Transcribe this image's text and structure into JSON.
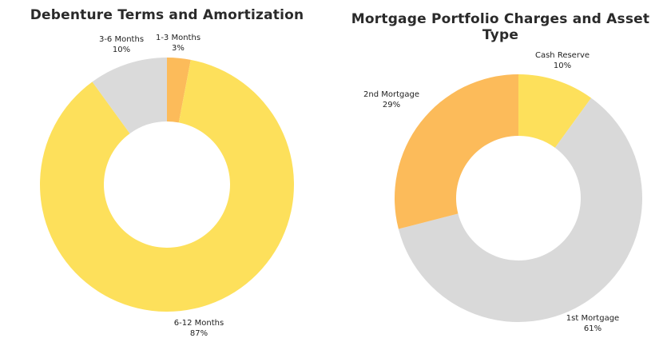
{
  "chart_data": [
    {
      "type": "pie",
      "variant": "donut",
      "title": "Debenture Terms and Amortization",
      "slices": [
        {
          "label": "1-3 Months",
          "value": 3,
          "value_label": "3%",
          "color": "#FCBB5A"
        },
        {
          "label": "6-12 Months",
          "value": 87,
          "value_label": "87%",
          "color": "#FDE05B"
        },
        {
          "label": "3-6 Months",
          "value": 10,
          "value_label": "10%",
          "color": "#DADADA"
        }
      ]
    },
    {
      "type": "pie",
      "variant": "donut",
      "title": "Mortgage Portfolio Charges and Asset Type",
      "slices": [
        {
          "label": "Cash Reserve",
          "value": 10,
          "value_label": "10%",
          "color": "#FDE05B"
        },
        {
          "label": "1st Mortgage",
          "value": 61,
          "value_label": "61%",
          "color": "#D9D9D9"
        },
        {
          "label": "2nd Mortgage",
          "value": 29,
          "value_label": "29%",
          "color": "#FCBB5A"
        }
      ]
    }
  ]
}
